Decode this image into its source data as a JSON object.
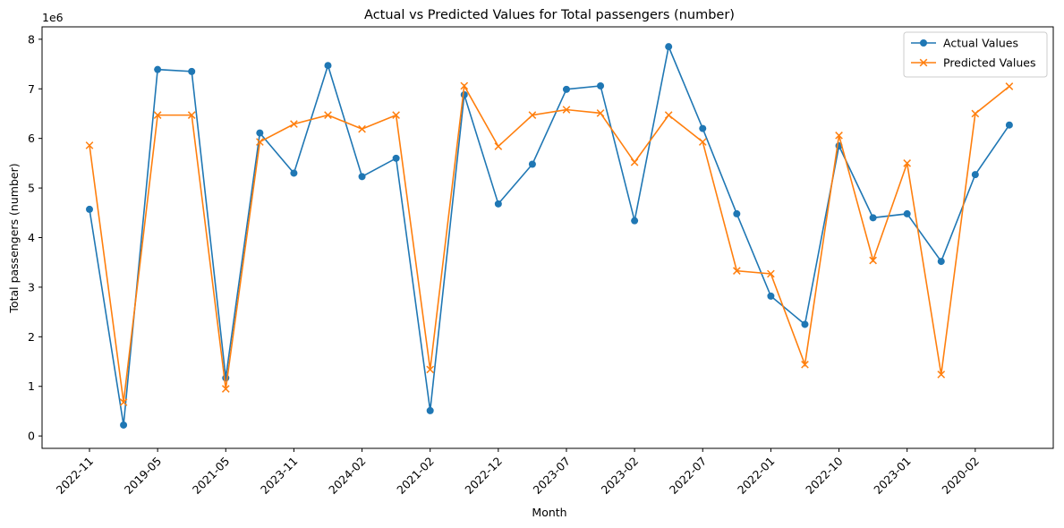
{
  "chart_data": {
    "type": "line",
    "title": "Actual vs Predicted Values for Total passengers (number)",
    "xlabel": "Month",
    "ylabel": "Total passengers (number)",
    "y_offset_label": "1e6",
    "ylim": [
      -0.25,
      8.25
    ],
    "y_ticks": [
      0,
      1,
      2,
      3,
      4,
      5,
      6,
      7,
      8
    ],
    "x_tick_labels": [
      "2022-11",
      "2019-05",
      "2021-05",
      "2023-11",
      "2024-02",
      "2021-02",
      "2022-12",
      "2023-07",
      "2023-02",
      "2022-07",
      "2022-01",
      "2022-10",
      "2023-01",
      "2020-02"
    ],
    "x_tick_every": 2,
    "grid": false,
    "legend_position": "top-right",
    "series": [
      {
        "name": "Actual Values",
        "color": "#1f77b4",
        "marker": "circle",
        "values": [
          4.57,
          0.22,
          7.39,
          7.35,
          1.17,
          6.11,
          5.3,
          7.47,
          5.23,
          5.6,
          0.51,
          6.88,
          4.68,
          5.48,
          6.99,
          7.06,
          4.34,
          7.85,
          6.2,
          4.48,
          2.82,
          2.25,
          5.85,
          4.4,
          4.48,
          3.52,
          5.27,
          6.27
        ]
      },
      {
        "name": "Predicted Values",
        "color": "#ff7f0e",
        "marker": "x",
        "values": [
          5.86,
          0.68,
          6.47,
          6.47,
          0.95,
          5.93,
          6.29,
          6.47,
          6.19,
          6.47,
          1.34,
          7.06,
          5.84,
          6.47,
          6.58,
          6.51,
          5.52,
          6.47,
          5.93,
          3.33,
          3.27,
          1.44,
          6.06,
          3.54,
          5.5,
          1.24,
          6.5,
          7.05
        ]
      }
    ]
  }
}
